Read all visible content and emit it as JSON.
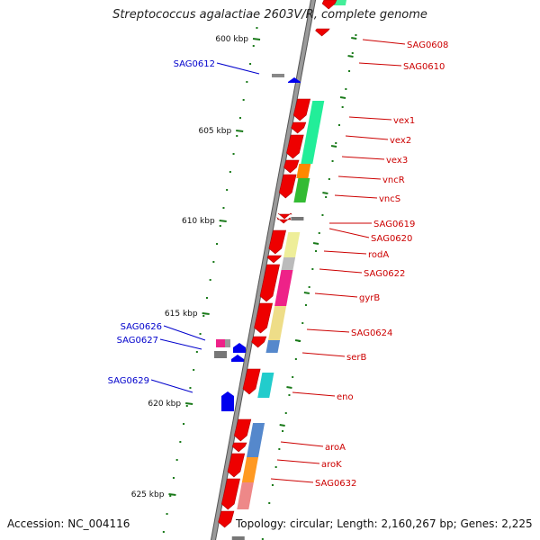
{
  "title": "Streptococcus agalactiae 2603V/R, complete genome",
  "footer": {
    "accession": "Accession: NC_004116",
    "topology": "Topology: circular; Length: 2,160,267 bp; Genes: 2,225"
  },
  "colors": {
    "backbone": "#777777",
    "tick": "#1a7a1a",
    "forward_gene": "#0000ee",
    "reverse_gene": "#ee0000",
    "label_forward": "#0000cc",
    "label_reverse": "#cc0000"
  },
  "kbp_ticks": [
    "600 kbp",
    "605 kbp",
    "610 kbp",
    "615 kbp",
    "620 kbp",
    "625 kbp"
  ],
  "gene_labels": {
    "right": [
      "SAG0608",
      "SAG0610",
      "vex1",
      "vex2",
      "vex3",
      "vncR",
      "vncS",
      "SAG0619",
      "SAG0620",
      "rodA",
      "SAG0622",
      "gyrB",
      "SAG0624",
      "serB",
      "eno",
      "aroA",
      "aroK",
      "SAG0632"
    ],
    "left": [
      "SAG0612",
      "SAG0626",
      "SAG0627",
      "SAG0629"
    ]
  }
}
